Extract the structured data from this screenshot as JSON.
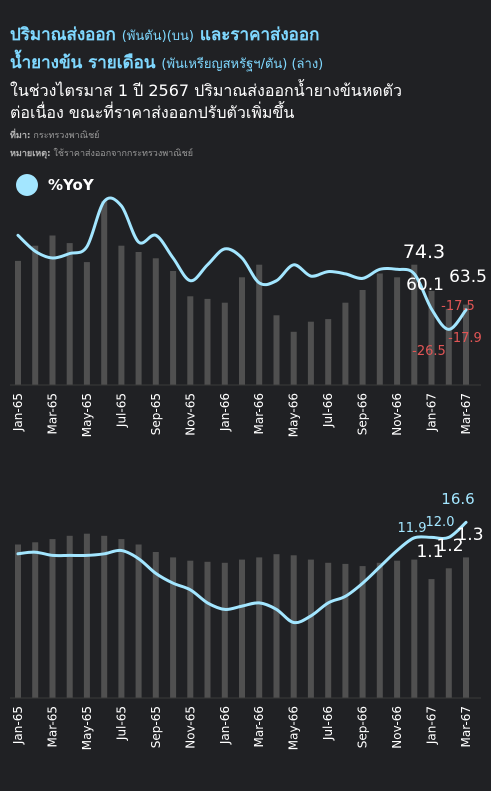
{
  "header": {
    "title_line1_main": "ปริมาณส่งออก",
    "title_line1_unit1": "(พันตัน)(บน)",
    "title_line1_main2": "และราคาส่งออก",
    "title_line2_main": "น้ำยางข้น รายเดือน",
    "title_line2_unit": "(พันเหรียญสหรัฐฯ/ตัน) (ล่าง)",
    "subtitle_line1": "ในช่วงไตรมาส 1 ปี 2567  ปริมาณส่งออกน้ำยางข้นหดตัว",
    "subtitle_line2": "ต่อเนื่อง ขณะที่ราคาส่งออกปรับตัวเพิ่มขึ้น",
    "source_label": "ที่มา:",
    "source_text": "กระทรวงพาณิชย์",
    "note_label": "หมายเหตุ:",
    "note_text": "ใช้ราคาส่งออกจากกระทรวงพาณิชย์"
  },
  "legend": {
    "label": "%YoY",
    "color": "#a3e6ff"
  },
  "colors": {
    "bar": "#505050",
    "line": "#a3e6ff",
    "negative": "#e05555",
    "positive": "#ffffff",
    "background": "#202124"
  },
  "chart_data": [
    {
      "type": "bar",
      "name": "export-volume",
      "categories": [
        "Jan-65",
        "Feb-65",
        "Mar-65",
        "Apr-65",
        "May-65",
        "Jun-65",
        "Jul-65",
        "Aug-65",
        "Sep-65",
        "Oct-65",
        "Nov-65",
        "Dec-65",
        "Jan-66",
        "Feb-66",
        "Mar-66",
        "Apr-66",
        "May-66",
        "Jun-66",
        "Jul-66",
        "Aug-66",
        "Sep-66",
        "Oct-66",
        "Nov-66",
        "Dec-66",
        "Jan-67",
        "Feb-67",
        "Mar-67"
      ],
      "xtick_labels": [
        "Jan-65",
        "Mar-65",
        "May-65",
        "Jul-65",
        "Sep-65",
        "Nov-65",
        "Jan-66",
        "Mar-66",
        "May-66",
        "Jul-66",
        "Sep-66",
        "Nov-66",
        "Jan-67",
        "Mar-67"
      ],
      "bar_values": [
        98,
        110,
        118,
        112,
        97,
        145,
        110,
        105,
        100,
        90,
        70,
        68,
        65,
        85,
        95,
        55,
        42,
        50,
        52,
        65,
        75,
        88,
        85,
        95,
        74.3,
        60.1,
        63.5
      ],
      "yoy_values": [
        15,
        8,
        5,
        7,
        10,
        30,
        28,
        12,
        15,
        5,
        -5,
        2,
        9,
        5,
        -6,
        -5,
        2,
        -3,
        -1,
        -2,
        -4,
        0,
        0,
        -2,
        -17.5,
        -26.5,
        -17.9
      ],
      "bar_labels": [
        {
          "index": 24,
          "text": "74.3"
        },
        {
          "index": 25,
          "text": "60.1"
        },
        {
          "index": 26,
          "text": "63.5"
        }
      ],
      "yoy_labels": [
        {
          "index": 24,
          "text": "-17.5"
        },
        {
          "index": 25,
          "text": "-26.5"
        },
        {
          "index": 26,
          "text": "-17.9"
        }
      ],
      "bar_ylim": [
        0,
        150
      ],
      "yoy_ylim": [
        -40,
        35
      ]
    },
    {
      "type": "bar",
      "name": "export-price",
      "categories": [
        "Jan-65",
        "Feb-65",
        "Mar-65",
        "Apr-65",
        "May-65",
        "Jun-65",
        "Jul-65",
        "Aug-65",
        "Sep-65",
        "Oct-65",
        "Nov-65",
        "Dec-65",
        "Jan-66",
        "Feb-66",
        "Mar-66",
        "Apr-66",
        "May-66",
        "Jun-66",
        "Jul-66",
        "Aug-66",
        "Sep-66",
        "Oct-66",
        "Nov-66",
        "Dec-66",
        "Jan-67",
        "Feb-67",
        "Mar-67"
      ],
      "xtick_labels": [
        "Jan-65",
        "Mar-65",
        "May-65",
        "Jul-65",
        "Sep-65",
        "Nov-65",
        "Jan-66",
        "Mar-66",
        "May-66",
        "Jul-66",
        "Sep-66",
        "Nov-66",
        "Jan-67",
        "Mar-67"
      ],
      "bar_values": [
        1.42,
        1.44,
        1.47,
        1.5,
        1.52,
        1.5,
        1.47,
        1.42,
        1.35,
        1.3,
        1.27,
        1.26,
        1.25,
        1.28,
        1.3,
        1.33,
        1.32,
        1.28,
        1.25,
        1.24,
        1.22,
        1.25,
        1.27,
        1.28,
        1.1,
        1.2,
        1.3
      ],
      "yoy_values": [
        7,
        7.5,
        6.5,
        6.5,
        6.5,
        7,
        8,
        5.5,
        1,
        -2,
        -4,
        -8,
        -10,
        -9,
        -8,
        -10,
        -14,
        -12,
        -8,
        -6,
        -2,
        3,
        8,
        11.9,
        12.0,
        12.0,
        16.6
      ],
      "bar_labels": [
        {
          "index": 24,
          "text": "1.1"
        },
        {
          "index": 25,
          "text": "1.2"
        },
        {
          "index": 26,
          "text": "1.3"
        }
      ],
      "yoy_labels": [
        {
          "index": 24,
          "text": "11.9"
        },
        {
          "index": 25,
          "text": "12.0"
        },
        {
          "index": 26,
          "text": "16.6"
        }
      ],
      "bar_ylim": [
        0,
        1.6
      ],
      "yoy_ylim": [
        -27,
        21
      ]
    }
  ]
}
